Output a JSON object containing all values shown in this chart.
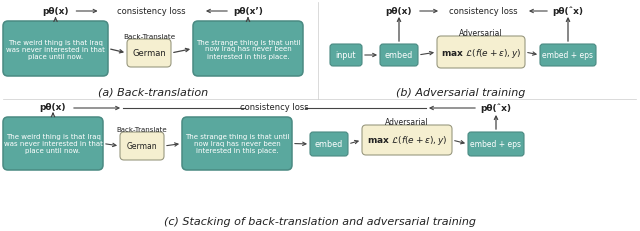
{
  "teal_color": "#5aA89E",
  "cream_color": "#F5EFD0",
  "bg_color": "#FFFFFF",
  "arrow_color": "#555555",
  "text_color": "#222222",
  "fig_width": 6.4,
  "fig_height": 2.32,
  "caption_a": "(a) Back-translation",
  "caption_b": "(b) Adversarial training",
  "caption_c": "(c) Stacking of back-translation and adversarial training",
  "bt_label": "Back-Translate",
  "german_label": "German",
  "input_label": "input",
  "embed_label": "embed",
  "adv_label": "Adversarial",
  "embed_eps_label": "embed + eps",
  "p_theta_x": "pθ(x)",
  "p_theta_xprime": "pθ(x’)",
  "p_theta_xhat": "pθ(ˆx)",
  "consistency_loss": "consistency loss",
  "text1": "The weird thing is that Iraq\nwas never interested in that\nplace until now.",
  "text2": "The strange thing is that until\nnow Iraq has never been\ninterested in this place."
}
